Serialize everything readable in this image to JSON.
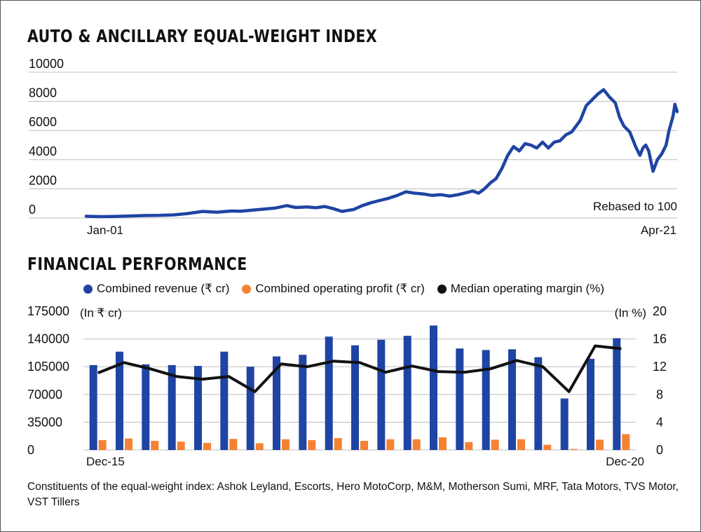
{
  "chart_data": [
    {
      "type": "line",
      "title": "AUTO & ANCILLARY EQUAL-WEIGHT INDEX",
      "annotation": "Rebased to 100",
      "y_ticks": [
        "10000",
        "8000",
        "6000",
        "4000",
        "2000",
        "0"
      ],
      "ylim": [
        0,
        10000
      ],
      "x_start_label": "Jan-01",
      "x_end_label": "Apr-21",
      "x_range": [
        2001.0,
        2021.33
      ],
      "color": "#1f44a3",
      "grid": true,
      "x": [
        2001.0,
        2001.5,
        2002.0,
        2002.5,
        2003.0,
        2003.5,
        2004.0,
        2004.5,
        2005.0,
        2005.5,
        2006.0,
        2006.3,
        2006.6,
        2007.0,
        2007.5,
        2007.9,
        2008.2,
        2008.6,
        2008.9,
        2009.2,
        2009.5,
        2009.8,
        2010.2,
        2010.5,
        2010.8,
        2011.1,
        2011.4,
        2011.7,
        2012.0,
        2012.3,
        2012.6,
        2012.9,
        2013.2,
        2013.5,
        2013.8,
        2014.1,
        2014.3,
        2014.5,
        2014.7,
        2014.9,
        2015.1,
        2015.3,
        2015.5,
        2015.7,
        2015.9,
        2016.1,
        2016.3,
        2016.5,
        2016.7,
        2016.9,
        2017.1,
        2017.3,
        2017.5,
        2017.7,
        2017.85,
        2018.0,
        2018.2,
        2018.4,
        2018.6,
        2018.8,
        2019.0,
        2019.2,
        2019.35,
        2019.5,
        2019.7,
        2019.9,
        2020.05,
        2020.15,
        2020.25,
        2020.35,
        2020.5,
        2020.65,
        2020.8,
        2020.95,
        2021.05,
        2021.15,
        2021.2,
        2021.25,
        2021.33
      ],
      "y": [
        120,
        90,
        110,
        140,
        170,
        180,
        210,
        310,
        450,
        400,
        480,
        460,
        520,
        590,
        680,
        850,
        720,
        760,
        700,
        790,
        640,
        450,
        580,
        850,
        1050,
        1200,
        1350,
        1550,
        1800,
        1700,
        1650,
        1550,
        1600,
        1500,
        1600,
        1750,
        1850,
        1700,
        2000,
        2400,
        2700,
        3400,
        4300,
        4900,
        4600,
        5100,
        5000,
        4800,
        5200,
        4800,
        5200,
        5300,
        5700,
        5900,
        6300,
        6700,
        7700,
        8100,
        8500,
        8800,
        8300,
        7900,
        6900,
        6300,
        5900,
        4900,
        4300,
        4800,
        5000,
        4600,
        3200,
        4000,
        4400,
        5000,
        6000,
        6700,
        7100,
        7800,
        7300
      ]
    },
    {
      "type": "bar+line",
      "title": "FINANCIAL PERFORMANCE",
      "legend": [
        {
          "label": "Combined revenue (₹ cr)",
          "color": "#1f44a3"
        },
        {
          "label": "Combined operating profit (₹ cr)",
          "color": "#f58233"
        },
        {
          "label": "Median operating margin (%)",
          "color": "#111111"
        }
      ],
      "y_left_unit": "(In ₹ cr)",
      "y_right_unit": "(In %)",
      "y_left_ticks": [
        "175000",
        "140000",
        "105000",
        "70000",
        "35000",
        "0"
      ],
      "y_right_ticks": [
        "20",
        "16",
        "12",
        "8",
        "4",
        "0"
      ],
      "ylim_left": [
        0,
        175000
      ],
      "ylim_right": [
        0,
        20
      ],
      "x_start_label": "Dec-15",
      "x_end_label": "Dec-20",
      "revenue": [
        107000,
        124000,
        108000,
        107000,
        106000,
        124000,
        105000,
        118000,
        120000,
        143000,
        132000,
        139000,
        144000,
        157000,
        128000,
        126000,
        127000,
        117000,
        65000,
        115000,
        141000
      ],
      "operating_profit": [
        12500,
        14500,
        11500,
        10500,
        9000,
        14000,
        8500,
        13500,
        12500,
        15000,
        11500,
        13500,
        13500,
        16000,
        10000,
        13000,
        13500,
        6500,
        1200,
        13000,
        20000
      ],
      "margin": [
        11.1,
        12.6,
        11.7,
        10.6,
        10.2,
        10.6,
        8.4,
        12.4,
        12.0,
        12.8,
        12.6,
        11.2,
        12.1,
        11.3,
        11.2,
        11.7,
        12.9,
        12.0,
        8.4,
        15.0,
        14.6
      ]
    }
  ],
  "footnote": "Constituents of the equal-weight index: Ashok Leyland, Escorts, Hero MotoCorp, M&M, Motherson Sumi, MRF, Tata Motors, TVS Motor, VST Tillers"
}
